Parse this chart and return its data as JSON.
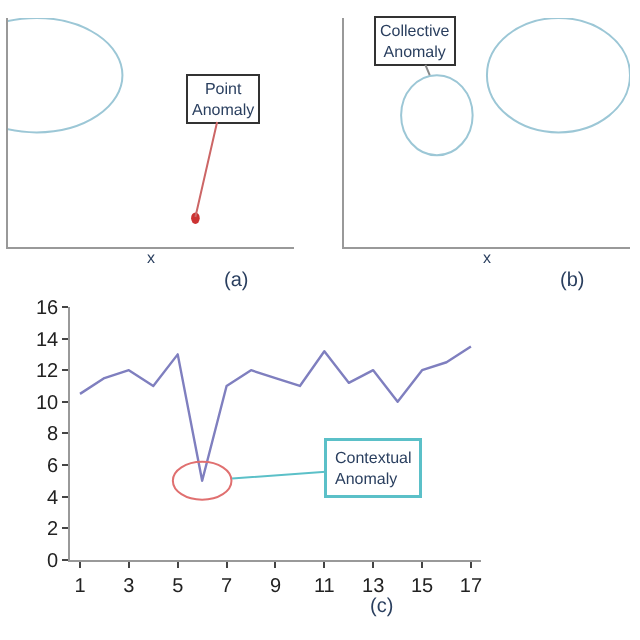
{
  "chart_data": [
    {
      "type": "other",
      "xlabel": "x",
      "annotations": [
        "Point Anomaly",
        "(a)"
      ]
    },
    {
      "type": "other",
      "xlabel": "x",
      "annotations": [
        "Collective Anomaly",
        "(b)"
      ]
    },
    {
      "type": "line",
      "x": [
        1,
        2,
        3,
        4,
        5,
        6,
        7,
        8,
        9,
        10,
        11,
        12,
        13,
        14,
        15,
        16,
        17
      ],
      "series": [
        {
          "color": "#7f7fbf",
          "values": [
            10.5,
            11.5,
            12,
            11,
            13,
            5,
            11,
            12,
            11.5,
            11,
            13.2,
            11.2,
            12,
            10,
            12,
            12.5,
            13.5
          ]
        }
      ],
      "xlim": [
        0.6,
        17.4
      ],
      "xticks": [
        1,
        3,
        5,
        7,
        9,
        11,
        13,
        15,
        17
      ],
      "ylim": [
        0,
        16
      ],
      "yticks": [
        0,
        2,
        4,
        6,
        8,
        10,
        12,
        14,
        16
      ],
      "marker": "none",
      "line_style": "solid",
      "annotations": [
        {
          "text": "Contextual Anomaly",
          "x": 6,
          "y": 5
        },
        "(c)"
      ]
    }
  ]
}
